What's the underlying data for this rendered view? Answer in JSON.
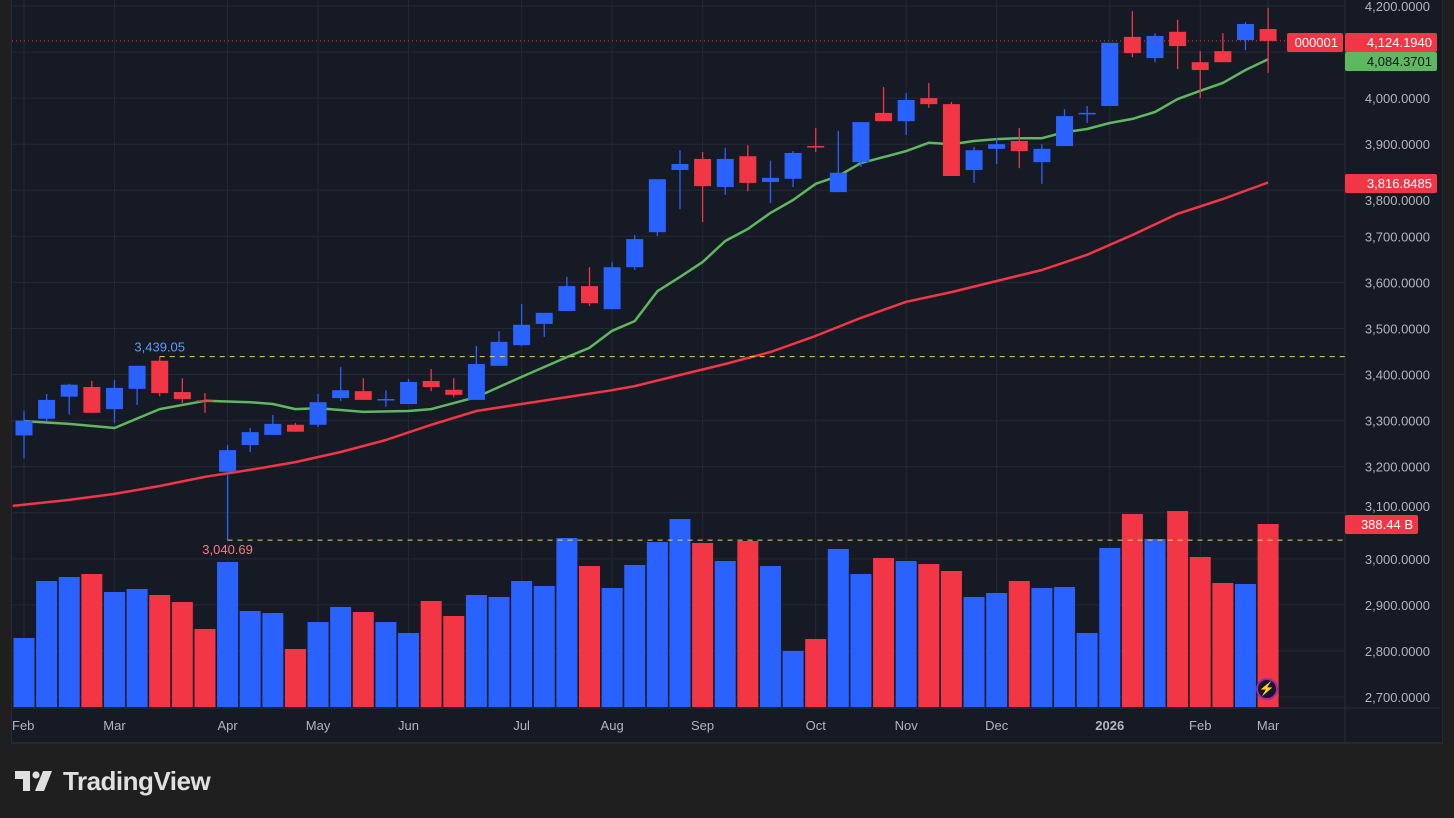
{
  "colors": {
    "up": "#2962ff",
    "down": "#f23645",
    "ma_fast": "#5fb75f",
    "ma_slow": "#f23645",
    "background": "#161a25",
    "grid": "#242936",
    "level_line": "#e6d64a"
  },
  "chart_data": {
    "type": "candlestick",
    "title": "",
    "xlabel": "",
    "ylabel": "",
    "ylim": [
      2680,
      4210
    ],
    "y_ticks": [
      "4,200.0000",
      "4,100.0000",
      "4,000.0000",
      "3,900.0000",
      "3,800.0000",
      "3,700.0000",
      "3,600.0000",
      "3,500.0000",
      "3,400.0000",
      "3,300.0000",
      "3,200.0000",
      "3,100.0000",
      "3,000.0000",
      "2,900.0000",
      "2,800.0000",
      "2,700.0000"
    ],
    "y_tick_values": [
      4200,
      4100,
      4000,
      3900,
      3800,
      3700,
      3600,
      3500,
      3400,
      3300,
      3200,
      3100,
      3000,
      2900,
      2800,
      2700
    ],
    "x_ticks": [
      {
        "label": "Feb",
        "index": 0,
        "bold": false
      },
      {
        "label": "Mar",
        "index": 4,
        "bold": false
      },
      {
        "label": "Apr",
        "index": 9,
        "bold": false
      },
      {
        "label": "May",
        "index": 13,
        "bold": false
      },
      {
        "label": "Jun",
        "index": 17,
        "bold": false
      },
      {
        "label": "Jul",
        "index": 22,
        "bold": false
      },
      {
        "label": "Aug",
        "index": 26,
        "bold": false
      },
      {
        "label": "Sep",
        "index": 30,
        "bold": false
      },
      {
        "label": "Oct",
        "index": 35,
        "bold": false
      },
      {
        "label": "Nov",
        "index": 39,
        "bold": false
      },
      {
        "label": "Dec",
        "index": 43,
        "bold": false
      },
      {
        "label": "2026",
        "index": 48,
        "bold": true
      },
      {
        "label": "Feb",
        "index": 52,
        "bold": false
      },
      {
        "label": "Mar",
        "index": 55,
        "bold": false
      }
    ],
    "ohlc": [
      [
        3268,
        3322,
        3218,
        3300
      ],
      [
        3304,
        3358,
        3298,
        3345
      ],
      [
        3352,
        3380,
        3313,
        3378
      ],
      [
        3373,
        3386,
        3317,
        3317
      ],
      [
        3325,
        3388,
        3295,
        3371
      ],
      [
        3369,
        3419,
        3334,
        3419
      ],
      [
        3430,
        3439,
        3353,
        3360
      ],
      [
        3362,
        3392,
        3338,
        3347
      ],
      [
        3344,
        3360,
        3317,
        3342
      ],
      [
        3189,
        3247,
        3041,
        3236
      ],
      [
        3247,
        3284,
        3232,
        3275
      ],
      [
        3269,
        3312,
        3269,
        3293
      ],
      [
        3291,
        3295,
        3276,
        3276
      ],
      [
        3291,
        3358,
        3286,
        3340
      ],
      [
        3349,
        3416,
        3343,
        3366
      ],
      [
        3364,
        3392,
        3345,
        3345
      ],
      [
        3345,
        3366,
        3330,
        3347
      ],
      [
        3336,
        3390,
        3336,
        3384
      ],
      [
        3386,
        3412,
        3364,
        3373
      ],
      [
        3367,
        3392,
        3351,
        3356
      ],
      [
        3345,
        3462,
        3345,
        3423
      ],
      [
        3419,
        3494,
        3419,
        3471
      ],
      [
        3464,
        3553,
        3462,
        3508
      ],
      [
        3510,
        3534,
        3482,
        3534
      ],
      [
        3538,
        3612,
        3538,
        3592
      ],
      [
        3592,
        3633,
        3549,
        3555
      ],
      [
        3542,
        3644,
        3542,
        3633
      ],
      [
        3633,
        3703,
        3627,
        3694
      ],
      [
        3709,
        3824,
        3701,
        3824
      ],
      [
        3844,
        3887,
        3759,
        3857
      ],
      [
        3868,
        3883,
        3731,
        3809
      ],
      [
        3807,
        3892,
        3790,
        3868
      ],
      [
        3874,
        3898,
        3798,
        3816
      ],
      [
        3818,
        3864,
        3772,
        3827
      ],
      [
        3825,
        3885,
        3807,
        3881
      ],
      [
        3896,
        3935,
        3883,
        3894
      ],
      [
        3796,
        3929,
        3796,
        3838
      ],
      [
        3861,
        3948,
        3851,
        3948
      ],
      [
        3968,
        4024,
        3950,
        3950
      ],
      [
        3950,
        4011,
        3920,
        3996
      ],
      [
        4000,
        4033,
        3979,
        3987
      ],
      [
        3987,
        3992,
        3831,
        3831
      ],
      [
        3844,
        3894,
        3816,
        3887
      ],
      [
        3890,
        3913,
        3857,
        3900
      ],
      [
        3907,
        3935,
        3848,
        3885
      ],
      [
        3861,
        3900,
        3814,
        3890
      ],
      [
        3896,
        3976,
        3896,
        3961
      ],
      [
        3966,
        3983,
        3946,
        3968
      ],
      [
        3983,
        4120,
        3983,
        4120
      ],
      [
        4133,
        4189,
        4089,
        4098
      ],
      [
        4087,
        4141,
        4078,
        4135
      ],
      [
        4144,
        4170,
        4063,
        4113
      ],
      [
        4078,
        4102,
        4000,
        4061
      ],
      [
        4102,
        4141,
        4078,
        4078
      ],
      [
        4126,
        4165,
        4104,
        4161
      ],
      [
        4150,
        4196,
        4055,
        4124.194
      ]
    ],
    "volume_billions": [
      146.5,
      267.4,
      275.9,
      282.3,
      244.1,
      250.5,
      237.7,
      222.9,
      165.6,
      307.8,
      203.8,
      199.5,
      123.1,
      180.4,
      212.3,
      201.6,
      180.4,
      157.1,
      225.0,
      193.2,
      237.7,
      233.5,
      267.4,
      256.8,
      358.7,
      299.3,
      252.6,
      301.4,
      350.2,
      399.0,
      348.1,
      309.9,
      352.4,
      299.3,
      118.9,
      144.3,
      335.4,
      282.3,
      316.3,
      309.9,
      303.5,
      288.7,
      233.5,
      242.0,
      267.4,
      252.6,
      254.7,
      157.1,
      337.5,
      409.7,
      356.6,
      416.0,
      318.4,
      263.2,
      261.1,
      388.44
    ],
    "ma_fast": [
      [
        0,
        3299
      ],
      [
        2,
        3293
      ],
      [
        4,
        3284
      ],
      [
        6,
        3325
      ],
      [
        8,
        3343
      ],
      [
        10,
        3340
      ],
      [
        11,
        3336
      ],
      [
        12,
        3325
      ],
      [
        13,
        3327
      ],
      [
        14,
        3323
      ],
      [
        15,
        3319
      ],
      [
        17,
        3321
      ],
      [
        18,
        3325
      ],
      [
        20,
        3351
      ],
      [
        22,
        3395
      ],
      [
        24,
        3438
      ],
      [
        25,
        3458
      ],
      [
        26,
        3495
      ],
      [
        27,
        3516
      ],
      [
        28,
        3581
      ],
      [
        29,
        3612
      ],
      [
        30,
        3644
      ],
      [
        31,
        3690
      ],
      [
        32,
        3716
      ],
      [
        33,
        3751
      ],
      [
        34,
        3779
      ],
      [
        35,
        3814
      ],
      [
        36,
        3831
      ],
      [
        37,
        3859
      ],
      [
        38,
        3872
      ],
      [
        39,
        3885
      ],
      [
        40,
        3903
      ],
      [
        41,
        3900
      ],
      [
        42,
        3907
      ],
      [
        43,
        3911
      ],
      [
        44,
        3913
      ],
      [
        45,
        3913
      ],
      [
        46,
        3926
      ],
      [
        47,
        3933
      ],
      [
        48,
        3946
      ],
      [
        49,
        3955
      ],
      [
        50,
        3970
      ],
      [
        51,
        3998
      ],
      [
        52,
        4016
      ],
      [
        53,
        4033
      ],
      [
        54,
        4061
      ],
      [
        55,
        4084.3701
      ]
    ],
    "ma_slow": [
      [
        -0.5,
        3115
      ],
      [
        2,
        3128
      ],
      [
        4,
        3141
      ],
      [
        6,
        3158
      ],
      [
        8,
        3178
      ],
      [
        10,
        3193
      ],
      [
        12,
        3210
      ],
      [
        14,
        3232
      ],
      [
        16,
        3258
      ],
      [
        18,
        3291
      ],
      [
        20,
        3321
      ],
      [
        22,
        3336
      ],
      [
        24,
        3351
      ],
      [
        26,
        3366
      ],
      [
        27,
        3375
      ],
      [
        29,
        3399
      ],
      [
        31,
        3423
      ],
      [
        33,
        3449
      ],
      [
        35,
        3484
      ],
      [
        37,
        3523
      ],
      [
        39,
        3558
      ],
      [
        41,
        3579
      ],
      [
        43,
        3603
      ],
      [
        45,
        3627
      ],
      [
        47,
        3660
      ],
      [
        49,
        3703
      ],
      [
        51,
        3749
      ],
      [
        53,
        3781
      ],
      [
        55,
        3816.8485
      ]
    ],
    "levels": [
      {
        "label": "3,439.05",
        "value": 3439.05,
        "from_index": 6,
        "color": "#5b9cf6"
      },
      {
        "label": "3,040.69",
        "value": 3040.69,
        "from_index": 9,
        "color": "#f77c80"
      }
    ],
    "current_price": 4124.194
  },
  "tags": {
    "symbol": "000001",
    "last_price": "4,124.1940",
    "ma_fast_value": "4,084.3701",
    "ma_slow_value": "3,816.8485",
    "volume": "388.44 B"
  },
  "footer": {
    "brand": "TradingView"
  }
}
